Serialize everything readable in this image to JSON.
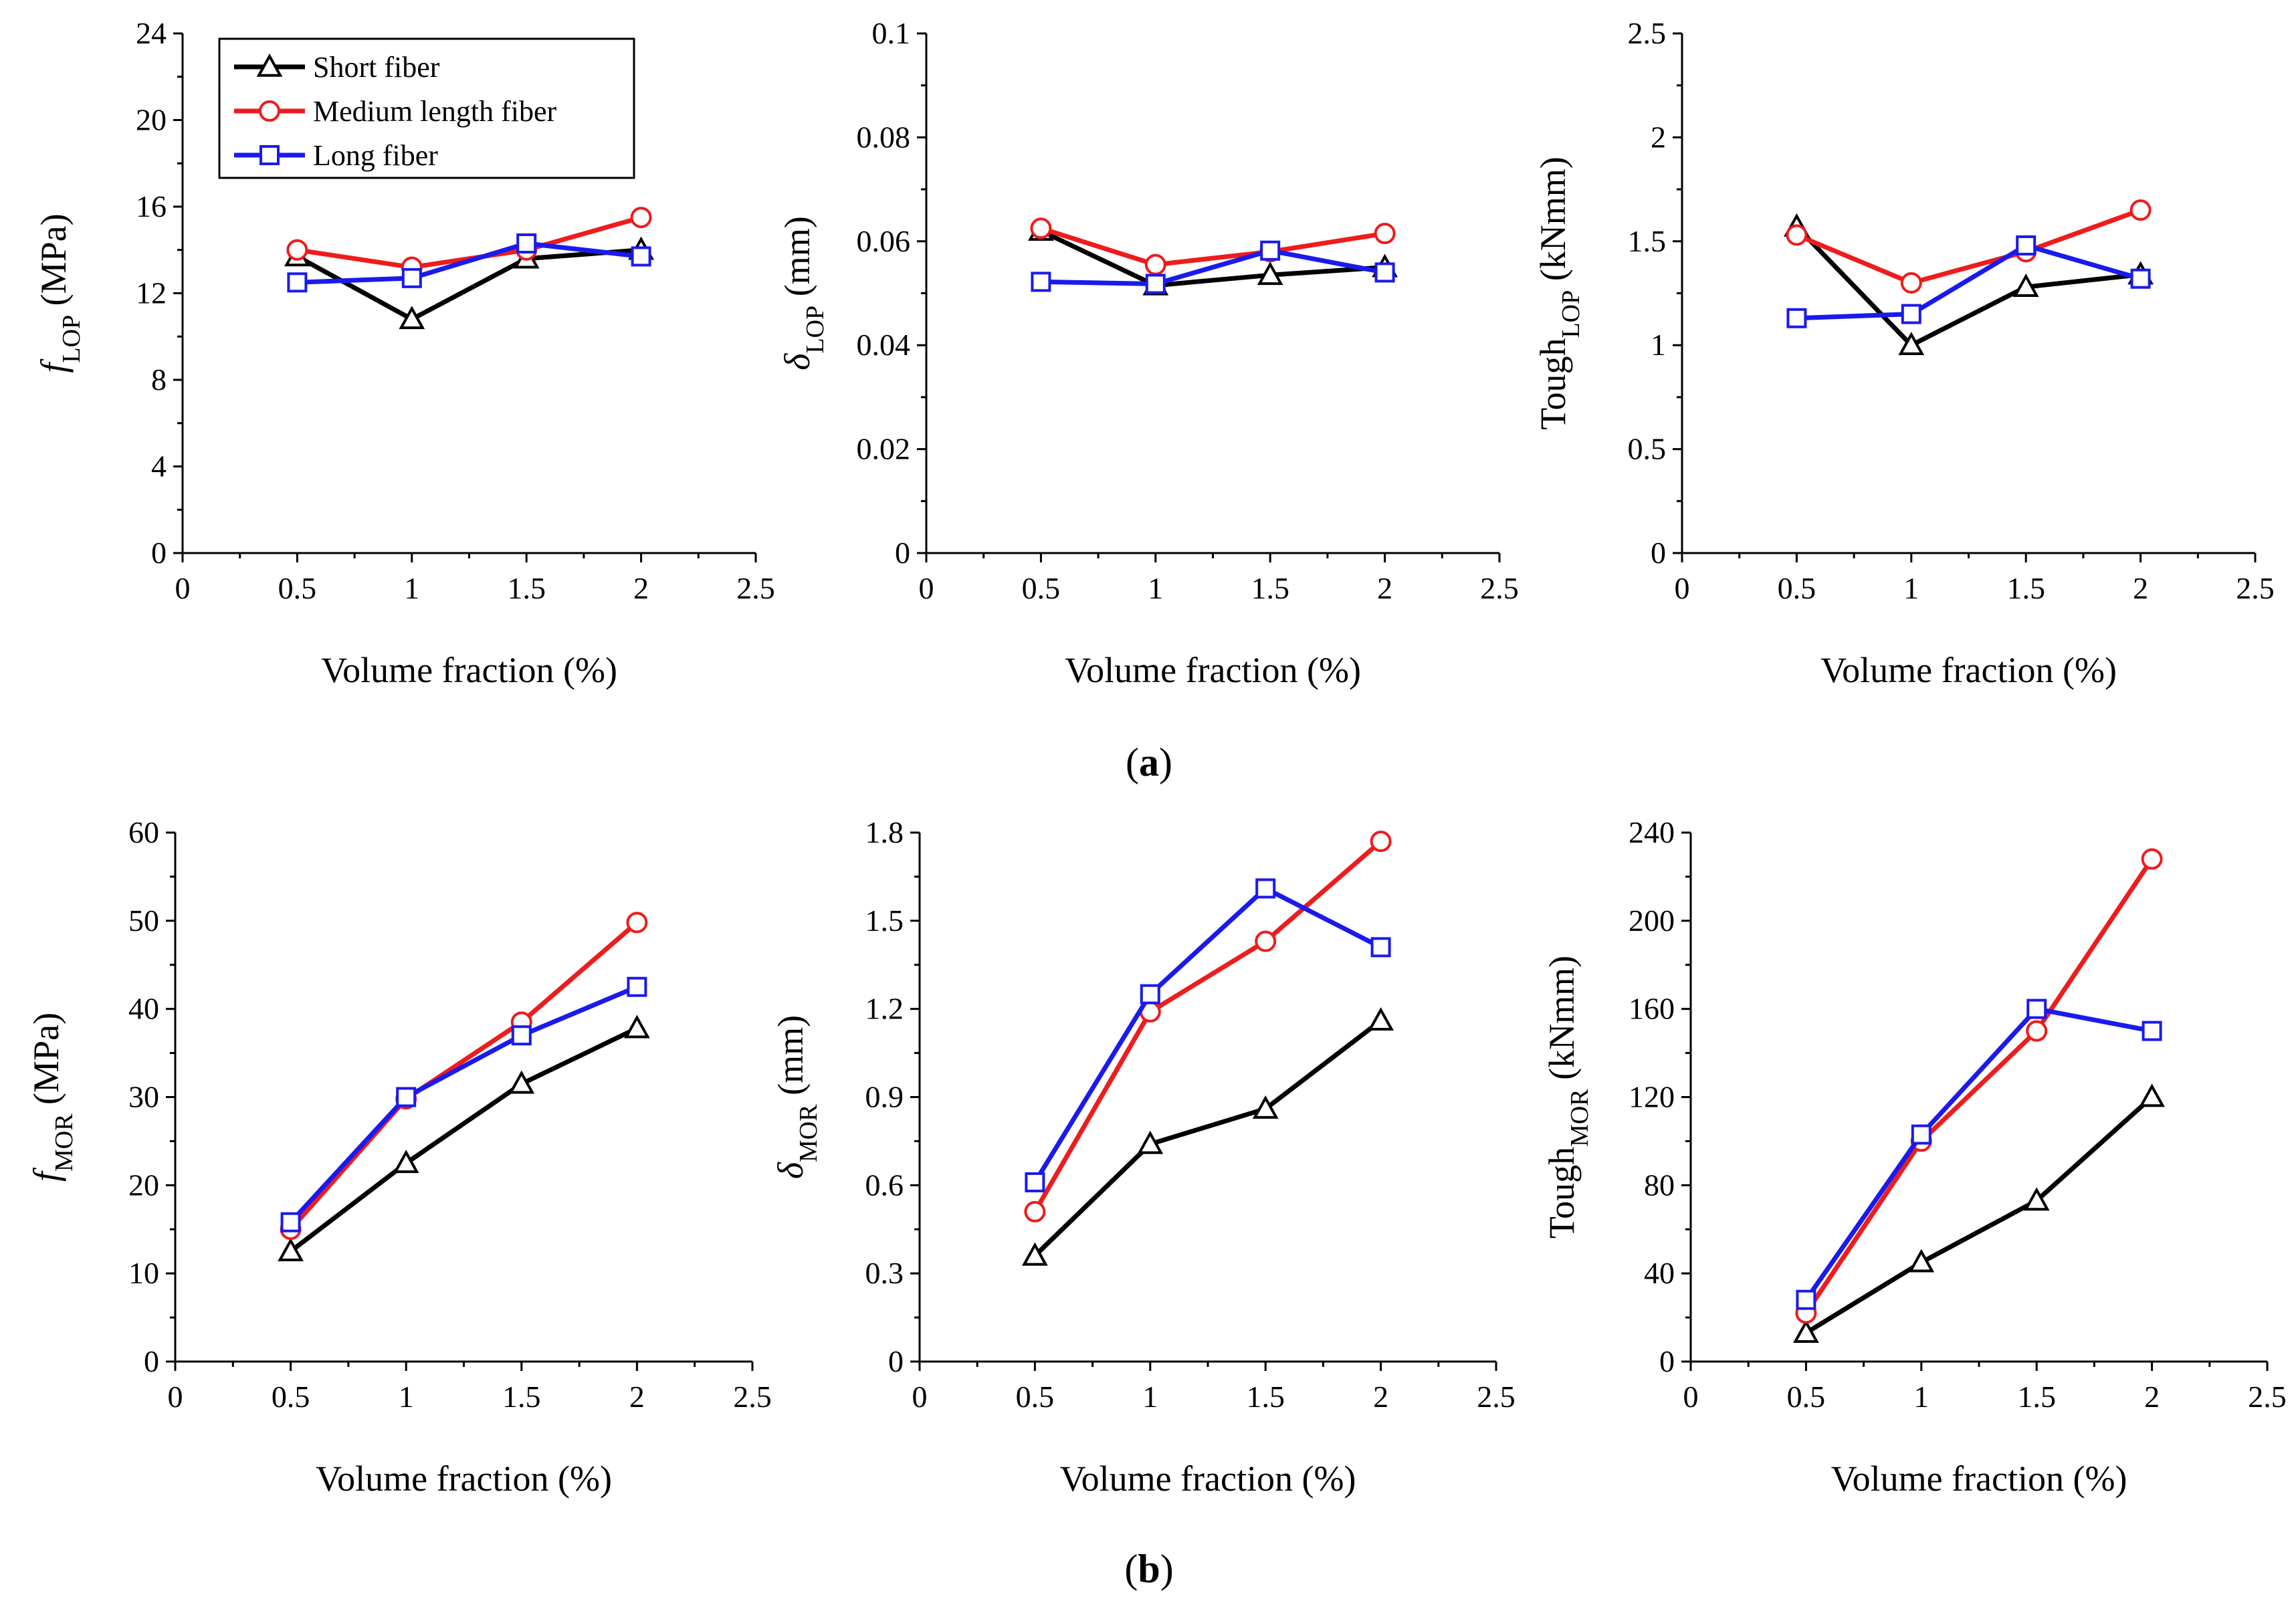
{
  "series_meta": [
    {
      "name": "Short fiber",
      "color": "#000000",
      "marker": "triangle"
    },
    {
      "name": "Medium length fiber",
      "color": "#ee1c1c",
      "marker": "circle"
    },
    {
      "name": "Long fiber",
      "color": "#1a1aee",
      "marker": "square"
    }
  ],
  "panel_labels": {
    "a": "a",
    "b": "b"
  },
  "chart_data": [
    {
      "id": "f_lop",
      "type": "line",
      "title": "",
      "xlabel": "Volume fraction (%)",
      "ylabel": {
        "main": "f",
        "sub": "LOP",
        "unit": " (MPa)",
        "italic_main": true
      },
      "xlim": [
        0,
        2.5
      ],
      "ylim": [
        0,
        24
      ],
      "xticks": [
        "0",
        "0.5",
        "1",
        "1.5",
        "2",
        "2.5"
      ],
      "yticks": [
        "0",
        "4",
        "8",
        "12",
        "16",
        "20",
        "24"
      ],
      "x": [
        0.5,
        1,
        1.5,
        2
      ],
      "series": [
        {
          "name": "Short fiber",
          "values": [
            13.7,
            10.8,
            13.6,
            14.0
          ]
        },
        {
          "name": "Medium length fiber",
          "values": [
            14.0,
            13.2,
            14.0,
            15.5
          ]
        },
        {
          "name": "Long fiber",
          "values": [
            12.5,
            12.7,
            14.3,
            13.7
          ]
        }
      ],
      "legend": "top-left"
    },
    {
      "id": "delta_lop",
      "type": "line",
      "title": "",
      "xlabel": "Volume fraction (%)",
      "ylabel": {
        "main": "δ",
        "sub": "LOP",
        "unit": " (mm)",
        "italic_main": true
      },
      "xlim": [
        0,
        2.5
      ],
      "ylim": [
        0,
        0.1
      ],
      "xticks": [
        "0",
        "0.5",
        "1",
        "1.5",
        "2",
        "2.5"
      ],
      "yticks": [
        "0",
        "0.02",
        "0.04",
        "0.06",
        "0.08",
        "0.1"
      ],
      "x": [
        0.5,
        1,
        1.5,
        2
      ],
      "series": [
        {
          "name": "Short fiber",
          "values": [
            0.062,
            0.0515,
            0.0535,
            0.055
          ]
        },
        {
          "name": "Medium length fiber",
          "values": [
            0.0625,
            0.0555,
            0.058,
            0.0615
          ]
        },
        {
          "name": "Long fiber",
          "values": [
            0.0522,
            0.0518,
            0.0582,
            0.054
          ]
        }
      ]
    },
    {
      "id": "tough_lop",
      "type": "line",
      "title": "",
      "xlabel": "Volume fraction (%)",
      "ylabel": {
        "main": "Tough",
        "sub": "LOP",
        "unit": " (kNmm)",
        "italic_main": false
      },
      "xlim": [
        0,
        2.5
      ],
      "ylim": [
        0,
        2.5
      ],
      "xticks": [
        "0",
        "0.5",
        "1",
        "1.5",
        "2",
        "2.5"
      ],
      "yticks": [
        "0",
        "0.5",
        "1",
        "1.5",
        "2",
        "2.5"
      ],
      "x": [
        0.5,
        1,
        1.5,
        2
      ],
      "series": [
        {
          "name": "Short fiber",
          "values": [
            1.57,
            1.0,
            1.28,
            1.34
          ]
        },
        {
          "name": "Medium length fiber",
          "values": [
            1.53,
            1.3,
            1.45,
            1.65
          ]
        },
        {
          "name": "Long fiber",
          "values": [
            1.13,
            1.15,
            1.48,
            1.32
          ]
        }
      ]
    },
    {
      "id": "f_mor",
      "type": "line",
      "title": "",
      "xlabel": "Volume fraction (%)",
      "ylabel": {
        "main": "f",
        "sub": "MOR",
        "unit": " (MPa)",
        "italic_main": true
      },
      "xlim": [
        0,
        2.5
      ],
      "ylim": [
        0,
        60
      ],
      "xticks": [
        "0",
        "0.5",
        "1",
        "1.5",
        "2",
        "2.5"
      ],
      "yticks": [
        "0",
        "10",
        "20",
        "30",
        "40",
        "50",
        "60"
      ],
      "x": [
        0.5,
        1,
        1.5,
        2
      ],
      "series": [
        {
          "name": "Short fiber",
          "values": [
            12.5,
            22.5,
            31.5,
            37.8
          ]
        },
        {
          "name": "Medium length fiber",
          "values": [
            15.0,
            29.8,
            38.5,
            49.8
          ]
        },
        {
          "name": "Long fiber",
          "values": [
            15.8,
            30.0,
            37.0,
            42.5
          ]
        }
      ]
    },
    {
      "id": "delta_mor",
      "type": "line",
      "title": "",
      "xlabel": "Volume fraction (%)",
      "ylabel": {
        "main": "δ",
        "sub": "MOR",
        "unit": " (mm)",
        "italic_main": true
      },
      "xlim": [
        0,
        2.5
      ],
      "ylim": [
        0,
        1.8
      ],
      "xticks": [
        "0",
        "0.5",
        "1",
        "1.5",
        "2",
        "2.5"
      ],
      "yticks": [
        "0",
        "0.3",
        "0.6",
        "0.9",
        "1.2",
        "1.5",
        "1.8"
      ],
      "x": [
        0.5,
        1,
        1.5,
        2
      ],
      "series": [
        {
          "name": "Short fiber",
          "values": [
            0.36,
            0.74,
            0.86,
            1.16
          ]
        },
        {
          "name": "Medium length fiber",
          "values": [
            0.51,
            1.19,
            1.43,
            1.77
          ]
        },
        {
          "name": "Long fiber",
          "values": [
            0.61,
            1.25,
            1.61,
            1.41
          ]
        }
      ]
    },
    {
      "id": "tough_mor",
      "type": "line",
      "title": "",
      "xlabel": "Volume fraction (%)",
      "ylabel": {
        "main": "Tough",
        "sub": "MOR",
        "unit": " (kNmm)",
        "italic_main": false
      },
      "xlim": [
        0,
        2.5
      ],
      "ylim": [
        0,
        240
      ],
      "xticks": [
        "0",
        "0.5",
        "1",
        "1.5",
        "2",
        "2.5"
      ],
      "yticks": [
        "0",
        "40",
        "80",
        "120",
        "160",
        "200",
        "240"
      ],
      "x": [
        0.5,
        1,
        1.5,
        2
      ],
      "series": [
        {
          "name": "Short fiber",
          "values": [
            13,
            45,
            73,
            120
          ]
        },
        {
          "name": "Medium length fiber",
          "values": [
            22,
            100,
            150,
            228
          ]
        },
        {
          "name": "Long fiber",
          "values": [
            28,
            103,
            160,
            150
          ]
        }
      ]
    }
  ]
}
